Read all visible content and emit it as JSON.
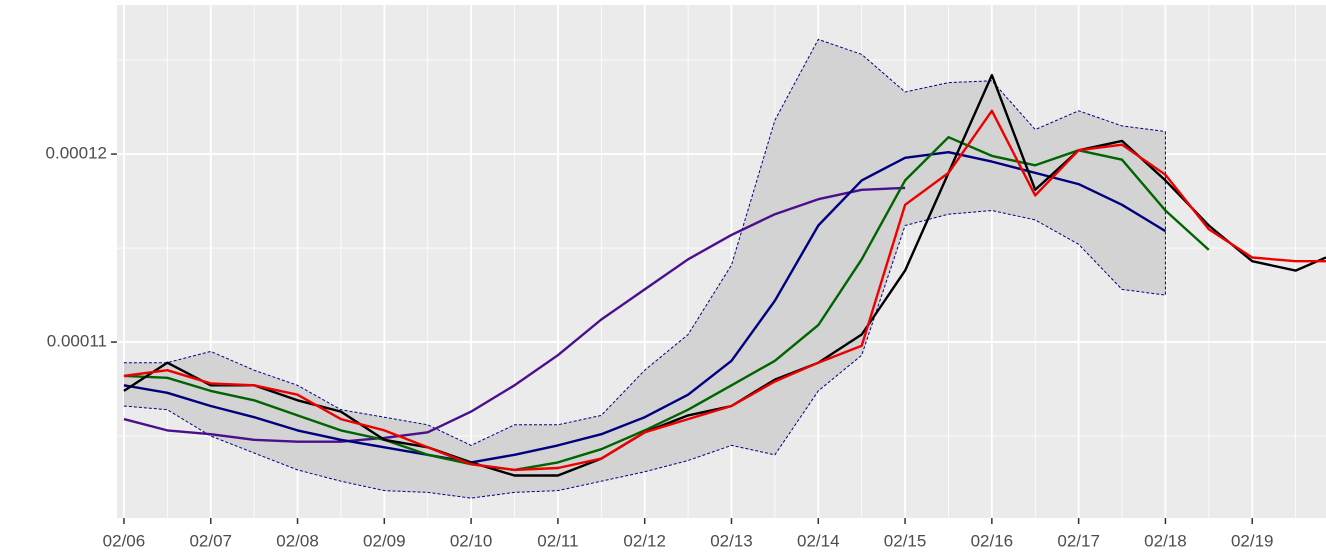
{
  "chart_data": {
    "type": "line",
    "grid": true,
    "background": "#ebebeb",
    "xlim": [
      -0.08,
      13.85
    ],
    "xticks": [
      {
        "value": 0,
        "label": "02/06"
      },
      {
        "value": 1,
        "label": "02/07"
      },
      {
        "value": 2,
        "label": "02/08"
      },
      {
        "value": 3,
        "label": "02/09"
      },
      {
        "value": 4,
        "label": "02/10"
      },
      {
        "value": 5,
        "label": "02/11"
      },
      {
        "value": 6,
        "label": "02/12"
      },
      {
        "value": 7,
        "label": "02/13"
      },
      {
        "value": 8,
        "label": "02/14"
      },
      {
        "value": 9,
        "label": "02/15"
      },
      {
        "value": 10,
        "label": "02/16"
      },
      {
        "value": 11,
        "label": "02/17"
      },
      {
        "value": 12,
        "label": "02/18"
      },
      {
        "value": 13,
        "label": "02/19"
      }
    ],
    "ylim": [
      0.00010064,
      0.00012793
    ],
    "yticks": [
      0.00011,
      0.00012
    ],
    "x": [
      0,
      0.5,
      1,
      1.5,
      2,
      2.5,
      3,
      3.5,
      4,
      4.5,
      5,
      5.5,
      6,
      6.5,
      7,
      7.5,
      8,
      8.5,
      9,
      9.5,
      10,
      10.5,
      11,
      11.5,
      12,
      12.5,
      13,
      13.5,
      13.85
    ],
    "band": {
      "fill": "#d3d3d3",
      "border_color": "#00008b",
      "upper": [
        0.0001089,
        0.0001089,
        0.0001095,
        0.0001085,
        0.0001077,
        0.0001064,
        0.000106,
        0.0001056,
        0.0001045,
        0.0001056,
        0.0001056,
        0.0001061,
        0.0001085,
        0.0001104,
        0.0001141,
        0.0001218,
        0.0001261,
        0.0001253,
        0.0001233,
        0.0001238,
        0.0001239,
        0.0001213,
        0.0001223,
        0.0001215,
        0.0001212,
        null,
        null,
        null,
        null
      ],
      "lower": [
        0.0001066,
        0.0001064,
        0.000105,
        0.0001041,
        0.0001032,
        0.0001026,
        0.0001021,
        0.000102,
        0.0001017,
        0.000102,
        0.0001021,
        0.0001026,
        0.0001031,
        0.0001037,
        0.0001045,
        0.000104,
        0.0001074,
        0.0001093,
        0.0001162,
        0.0001168,
        0.000117,
        0.0001165,
        0.0001152,
        0.0001128,
        0.0001125,
        null,
        null,
        null,
        null
      ]
    },
    "series": [
      {
        "color": "#4b0f8c",
        "values": [
          0.0001059,
          0.0001053,
          0.0001051,
          0.0001048,
          0.0001047,
          0.0001047,
          0.0001049,
          0.0001052,
          0.0001063,
          0.0001077,
          0.0001093,
          0.0001112,
          0.0001128,
          0.0001144,
          0.0001157,
          0.0001168,
          0.0001176,
          0.0001181,
          0.0001182,
          null,
          null,
          null,
          null,
          null,
          null,
          null,
          null,
          null,
          null
        ]
      },
      {
        "color": "#00007f",
        "values": [
          0.0001077,
          0.0001073,
          0.0001066,
          0.000106,
          0.0001053,
          0.0001048,
          0.0001044,
          0.000104,
          0.0001036,
          0.000104,
          0.0001045,
          0.0001051,
          0.000106,
          0.0001072,
          0.000109,
          0.0001122,
          0.0001162,
          0.0001186,
          0.0001198,
          0.0001201,
          0.0001196,
          0.000119,
          0.0001184,
          0.0001173,
          0.0001159,
          null,
          null,
          null,
          null
        ]
      },
      {
        "color": "#006400",
        "values": [
          0.0001082,
          0.0001081,
          0.0001074,
          0.0001069,
          0.0001061,
          0.0001053,
          0.0001048,
          0.000104,
          0.0001035,
          0.0001032,
          0.0001036,
          0.0001043,
          0.0001053,
          0.0001064,
          0.0001077,
          0.000109,
          0.0001109,
          0.0001144,
          0.0001186,
          0.0001209,
          0.0001199,
          0.0001194,
          0.0001202,
          0.0001197,
          0.000117,
          0.0001149,
          null,
          null,
          null
        ]
      },
      {
        "color": "#000000",
        "values": [
          0.0001074,
          0.0001089,
          0.0001077,
          0.0001077,
          0.0001069,
          0.0001063,
          0.0001048,
          0.0001044,
          0.0001036,
          0.0001029,
          0.0001029,
          0.0001038,
          0.0001052,
          0.0001061,
          0.0001066,
          0.000108,
          0.0001089,
          0.0001104,
          0.0001138,
          0.000119,
          0.0001242,
          0.0001181,
          0.0001202,
          0.0001207,
          0.0001186,
          0.0001162,
          0.0001143,
          0.0001138,
          0.0001145
        ]
      },
      {
        "color": "#ee0000",
        "values": [
          0.0001082,
          0.0001085,
          0.0001078,
          0.0001077,
          0.0001072,
          0.0001059,
          0.0001053,
          0.0001044,
          0.0001035,
          0.0001032,
          0.0001033,
          0.0001038,
          0.0001052,
          0.0001059,
          0.0001066,
          0.0001079,
          0.0001089,
          0.0001098,
          0.0001173,
          0.000119,
          0.0001223,
          0.0001178,
          0.0001202,
          0.0001205,
          0.0001189,
          0.000116,
          0.0001145,
          0.0001143,
          0.0001143
        ]
      }
    ]
  }
}
